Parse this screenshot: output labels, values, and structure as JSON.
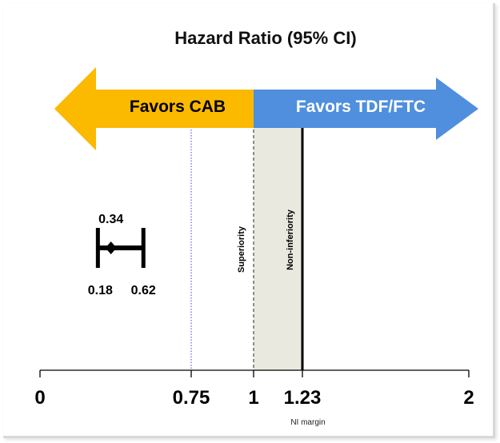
{
  "chart_data": {
    "type": "forest",
    "title": "Hazard Ratio (95% CI)",
    "x_ticks": [
      {
        "value": 0,
        "label": "0"
      },
      {
        "value": 0.75,
        "label": "0.75"
      },
      {
        "value": 1,
        "label": "1"
      },
      {
        "value": 1.23,
        "label": "1.23"
      },
      {
        "value": 2,
        "label": "2"
      }
    ],
    "xlim": [
      0,
      2
    ],
    "scale": "piecewise",
    "arrows": {
      "left": {
        "label": "Favors CAB",
        "color": "#fbb900",
        "text_color": "#000000"
      },
      "right": {
        "label": "Favors TDF/FTC",
        "color": "#4f8fdd",
        "text_color": "#ffffff"
      }
    },
    "estimate": {
      "point": 0.34,
      "lower": 0.18,
      "upper": 0.62,
      "point_label": "0.34",
      "lower_label": "0.18",
      "upper_label": "0.62"
    },
    "reference_lines": [
      {
        "value": 0.75,
        "style": "dotted",
        "color": "#3d3df0",
        "label": ""
      },
      {
        "value": 1,
        "style": "dashed",
        "color": "#555555",
        "label": "Superiority"
      },
      {
        "value": 1.23,
        "style": "solid",
        "color": "#000000",
        "label": "Non-inferiority"
      }
    ],
    "shaded_region": {
      "from": 1,
      "to": 1.23,
      "color": "#eae9e0"
    },
    "annotations": [
      {
        "at": 1.23,
        "text": "NI margin"
      }
    ]
  }
}
